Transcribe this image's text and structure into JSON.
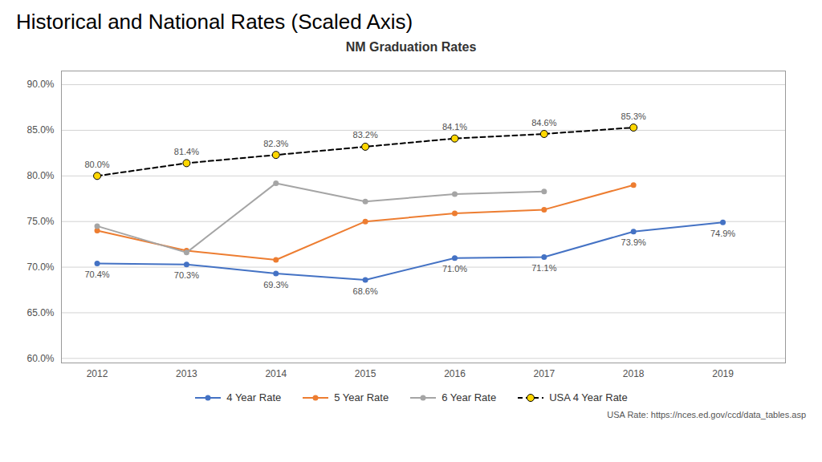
{
  "chart_data": {
    "type": "line",
    "title": "Historical and National Rates (Scaled Axis)",
    "subtitle": "NM Graduation Rates",
    "x": [
      2012,
      2013,
      2014,
      2015,
      2016,
      2017,
      2018,
      2019
    ],
    "series": [
      {
        "name": "4 Year Rate",
        "color": "#4472C4",
        "marker": "circle",
        "line_style": "solid",
        "values": [
          70.4,
          70.3,
          69.3,
          68.6,
          71.0,
          71.1,
          73.9,
          74.9
        ],
        "data_labels": true,
        "value_labels": [
          "70.4%",
          "70.3%",
          "69.3%",
          "68.6%",
          "71.0%",
          "71.1%",
          "73.9%",
          "74.9%"
        ]
      },
      {
        "name": "5 Year Rate",
        "color": "#ED7D31",
        "marker": "circle",
        "line_style": "solid",
        "values": [
          74.0,
          71.8,
          70.8,
          75.0,
          75.9,
          76.3,
          79.0,
          null
        ]
      },
      {
        "name": "6 Year Rate",
        "color": "#A5A5A5",
        "marker": "circle",
        "line_style": "solid",
        "values": [
          74.5,
          71.6,
          79.2,
          77.2,
          78.0,
          78.3,
          null,
          null
        ]
      },
      {
        "name": "USA 4 Year Rate",
        "color": "#000000",
        "marker": "circle",
        "line_style": "dashed",
        "colors": [
          "#FFD700",
          "#FFD700",
          "#FFD700",
          "#FFD700",
          "#FFD700",
          "#FFD700",
          "#FFD700",
          "#FFD700"
        ],
        "values": [
          80.0,
          81.4,
          82.3,
          83.2,
          84.1,
          84.6,
          85.3,
          null
        ],
        "data_labels": true,
        "value_labels": [
          "80.0%",
          "81.4%",
          "82.3%",
          "83.2%",
          "84.1%",
          "84.6%",
          "85.3%",
          null
        ]
      }
    ],
    "xlim": [
      2011.6,
      2019.7
    ],
    "xticks": [
      2012,
      2013,
      2014,
      2015,
      2016,
      2017,
      2018,
      2019
    ],
    "ylim": [
      59.5,
      91.5
    ],
    "yticks": [
      {
        "value": 60.0,
        "label": "60.0%"
      },
      {
        "value": 65.0,
        "label": "65.0%"
      },
      {
        "value": 70.0,
        "label": "70.0%"
      },
      {
        "value": 75.0,
        "label": "75.0%"
      },
      {
        "value": 80.0,
        "label": "80.0%"
      },
      {
        "value": 85.0,
        "label": "85.0%"
      },
      {
        "value": 90.0,
        "label": "90.0%"
      }
    ],
    "grid": true,
    "legend": "bottom",
    "annotations": [
      "USA Rate: https://nces.ed.gov/ccd/data_tables.asp"
    ]
  }
}
